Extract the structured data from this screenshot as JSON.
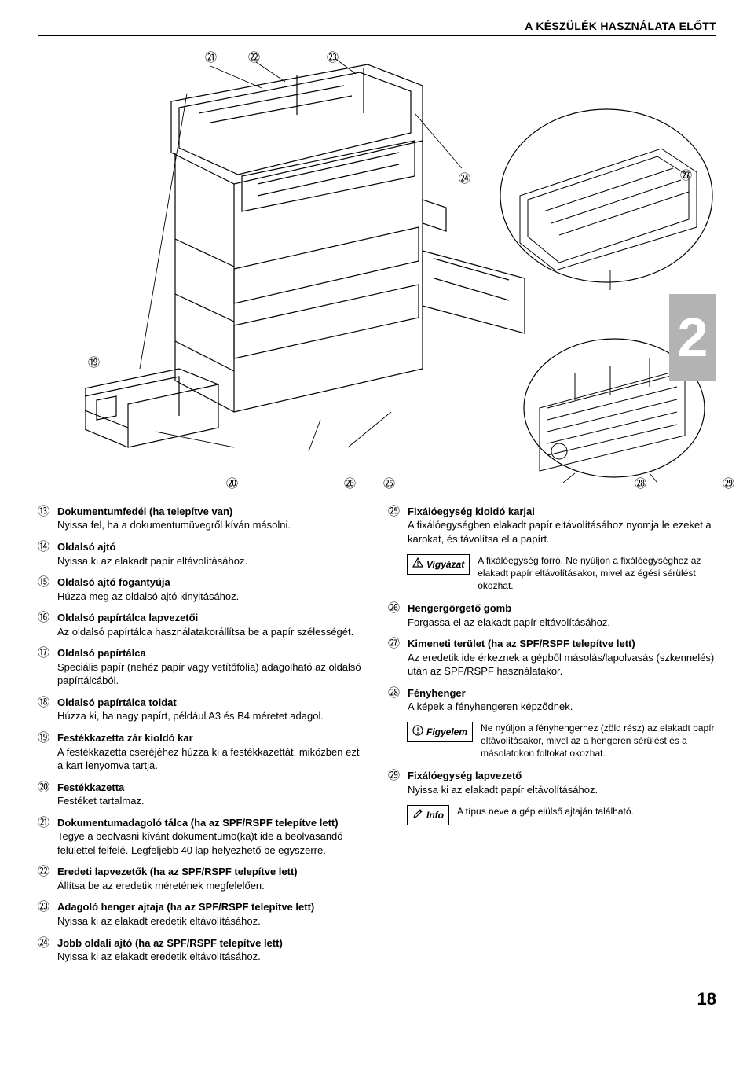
{
  "header": {
    "title": "A KÉSZÜLÉK HASZNÁLATA ELŐTT"
  },
  "section_number": "2",
  "page_number": "18",
  "circled": {
    "13": "⑬",
    "14": "⑭",
    "15": "⑮",
    "16": "⑯",
    "17": "⑰",
    "18": "⑱",
    "19": "⑲",
    "20": "⑳",
    "21": "㉑",
    "22": "㉒",
    "23": "㉓",
    "24": "㉔",
    "25": "㉕",
    "26": "㉖",
    "27": "㉗",
    "28": "㉘",
    "29": "㉙"
  },
  "diagram_labels": {
    "n19": "⑲",
    "n20": "⑳",
    "n21": "㉑",
    "n22": "㉒",
    "n23": "㉓",
    "n24": "㉔",
    "n25": "㉕",
    "n26": "㉖",
    "n27": "㉗",
    "n28": "㉘",
    "n29": "㉙"
  },
  "left": [
    {
      "num": "⑬",
      "title": "Dokumentumfedél (ha telepítve van)",
      "desc": "Nyissa fel, ha a dokumentumüvegről kíván másolni."
    },
    {
      "num": "⑭",
      "title": "Oldalsó ajtó",
      "desc": "Nyissa ki az elakadt papír eltávolításához."
    },
    {
      "num": "⑮",
      "title": "Oldalsó ajtó fogantyúja",
      "desc": "Húzza meg az oldalsó ajtó kinyitásához."
    },
    {
      "num": "⑯",
      "title": "Oldalsó papírtálca lapvezetői",
      "desc": "Az oldalsó papírtálca használatakorállítsa be a papír szélességét."
    },
    {
      "num": "⑰",
      "title": "Oldalsó papírtálca",
      "desc": "Speciális papír (nehéz papír vagy vetítőfólia) adagolható az oldalsó papírtálcából."
    },
    {
      "num": "⑱",
      "title": "Oldalsó papírtálca toldat",
      "desc": "Húzza ki, ha nagy papírt, például A3 és B4 méretet adagol."
    },
    {
      "num": "⑲",
      "title": "Festékkazetta zár kioldó kar",
      "desc": "A festékkazetta cseréjéhez húzza ki a festékkazettát, miközben ezt a kart lenyomva tartja."
    },
    {
      "num": "⑳",
      "title": "Festékkazetta",
      "desc": "Festéket tartalmaz."
    },
    {
      "num": "㉑",
      "title": "Dokumentumadagoló tálca (ha az SPF/RSPF telepítve lett)",
      "desc": "Tegye a beolvasni kívánt dokumentumo(ka)t ide a beolvasandó felülettel felfelé. Legfeljebb 40 lap helyezhető be egyszerre."
    },
    {
      "num": "㉒",
      "title": "Eredeti lapvezetők (ha az SPF/RSPF telepítve lett)",
      "desc": "Állítsa be az eredetik méretének megfelelően."
    },
    {
      "num": "㉓",
      "title": "Adagoló henger ajtaja (ha az SPF/RSPF telepítve lett)",
      "desc": "Nyissa ki az elakadt eredetik eltávolításához."
    },
    {
      "num": "㉔",
      "title": "Jobb oldali ajtó (ha az SPF/RSPF telepítve lett)",
      "desc": "Nyissa ki az elakadt eredetik eltávolításához."
    }
  ],
  "right": [
    {
      "num": "㉕",
      "title": "Fixálóegység kioldó karjai",
      "desc": "A fixálóegységben elakadt papír eltávolításához nyomja le ezeket a karokat, és távolítsa el a papírt."
    },
    {
      "kind": "callout",
      "badge": "Vigyázat",
      "icon": "warning",
      "text": "A fixálóegység forró. Ne nyúljon a fixálóegységhez az elakadt papír eltávolításakor, mivel az égési sérülést okozhat."
    },
    {
      "num": "㉖",
      "title": "Hengergörgető gomb",
      "desc": "Forgassa el az elakadt papír eltávolításához."
    },
    {
      "num": "㉗",
      "title": "Kimeneti terület (ha az SPF/RSPF telepítve lett)",
      "desc": "Az eredetik ide érkeznek a gépből másolás/lapolvasás (szkennelés) után az SPF/RSPF használatakor."
    },
    {
      "num": "㉘",
      "title": "Fényhenger",
      "desc": "A képek a fényhengeren képződnek."
    },
    {
      "kind": "callout",
      "badge": "Figyelem",
      "icon": "alert",
      "text": "Ne nyúljon a fényhengerhez (zöld rész) az elakadt papír eltávolításakor, mivel az a hengeren sérülést és a másolatokon foltokat okozhat."
    },
    {
      "num": "㉙",
      "title": "Fixálóegység lapvezető",
      "desc": "Nyissa ki az elakadt papír eltávolításához."
    },
    {
      "kind": "callout",
      "badge": "Info",
      "icon": "pencil",
      "text": "A típus neve a gép elülső ajtaján található."
    }
  ]
}
